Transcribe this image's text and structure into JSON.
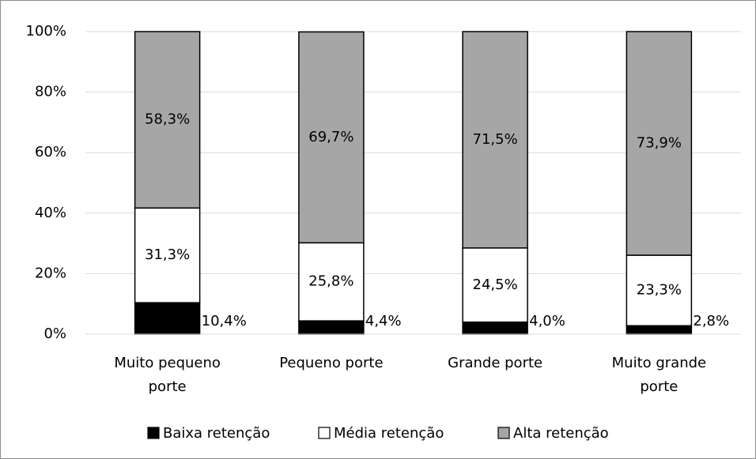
{
  "chart_data": {
    "type": "stacked_bar",
    "categories": [
      "Muito pequeno porte",
      "Pequeno porte",
      "Grande porte",
      "Muito grande porte"
    ],
    "series": [
      {
        "name": "Baixa retenção",
        "color": "#000000",
        "values": [
          10.4,
          4.4,
          4.0,
          2.8
        ],
        "value_labels": [
          "10,4%",
          "4,4%",
          "4,0%",
          "2,8%"
        ]
      },
      {
        "name": "Média retenção",
        "color": "#ffffff",
        "values": [
          31.3,
          25.8,
          24.5,
          23.3
        ],
        "value_labels": [
          "31,3%",
          "25,8%",
          "24,5%",
          "23,3%"
        ]
      },
      {
        "name": "Alta retenção",
        "color": "#a6a6a6",
        "values": [
          58.3,
          69.7,
          71.5,
          73.9
        ],
        "value_labels": [
          "58,3%",
          "69,7%",
          "71,5%",
          "73,9%"
        ]
      }
    ],
    "ylim": [
      0,
      100
    ],
    "yticks": [
      {
        "value": 0,
        "label": "0%"
      },
      {
        "value": 20,
        "label": "20%"
      },
      {
        "value": 40,
        "label": "40%"
      },
      {
        "value": 60,
        "label": "60%"
      },
      {
        "value": 80,
        "label": "80%"
      },
      {
        "value": 100,
        "label": "100%"
      }
    ],
    "grid": true,
    "legend": "bottom"
  }
}
